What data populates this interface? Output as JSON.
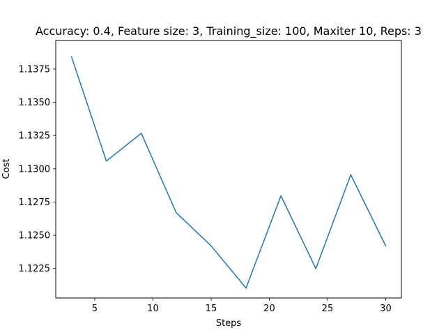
{
  "chart_data": {
    "type": "line",
    "title": "Accuracy: 0.4, Feature size: 3, Training_size: 100, Maxiter 10, Reps: 3",
    "xlabel": "Steps",
    "ylabel": "Cost",
    "xlim": [
      1.65,
      31.35
    ],
    "ylim": [
      1.12028,
      1.13965
    ],
    "xticks": [
      5,
      10,
      15,
      20,
      25,
      30
    ],
    "yticks": [
      1.1225,
      1.125,
      1.1275,
      1.13,
      1.1325,
      1.135,
      1.1375
    ],
    "ytick_labels": [
      "1.1225",
      "1.1250",
      "1.1275",
      "1.1300",
      "1.1325",
      "1.1350",
      "1.1375"
    ],
    "grid": false,
    "series": [
      {
        "color": "#1f77b4",
        "x": [
          3,
          6,
          9,
          12,
          15,
          18,
          21,
          24,
          27,
          30
        ],
        "y": [
          1.13843,
          1.13058,
          1.13267,
          1.1267,
          1.1242,
          1.12103,
          1.12797,
          1.12249,
          1.12955,
          1.1242
        ]
      }
    ]
  }
}
